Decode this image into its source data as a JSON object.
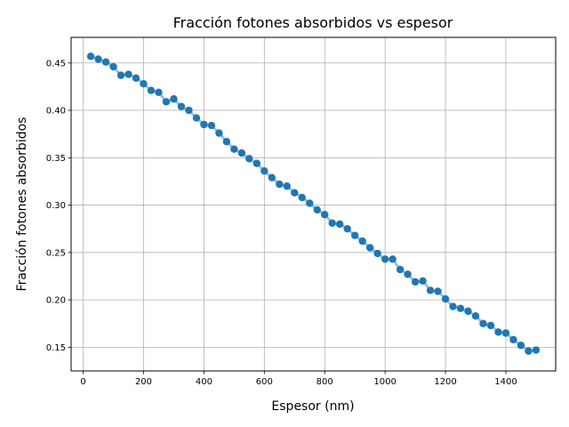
{
  "chart_data": {
    "type": "scatter",
    "title": "Fracción fotones absorbidos vs espesor",
    "xlabel": "Espesor (nm)",
    "ylabel": "Fracción fotones absorbidos",
    "xlim": [
      -40,
      1565
    ],
    "ylim": [
      0.125,
      0.477
    ],
    "xticks": [
      0,
      200,
      400,
      600,
      800,
      1000,
      1200,
      1400
    ],
    "yticks": [
      0.15,
      0.2,
      0.25,
      0.3,
      0.35,
      0.4,
      0.45
    ],
    "xtick_labels": [
      "0",
      "200",
      "400",
      "600",
      "800",
      "1000",
      "1200",
      "1400"
    ],
    "ytick_labels": [
      "0.15",
      "0.20",
      "0.25",
      "0.30",
      "0.35",
      "0.40",
      "0.45"
    ],
    "grid": true,
    "colors": {
      "marker": "#1f77b4",
      "line": "#1f77b4",
      "grid": "#b0b0b0"
    },
    "series": [
      {
        "x": [
          25,
          50,
          75,
          100,
          125,
          150,
          175,
          200,
          225,
          250,
          275,
          300,
          325,
          350,
          375,
          400,
          425,
          450,
          475,
          500,
          525,
          550,
          575,
          600,
          625,
          650,
          675,
          700,
          725,
          750,
          775,
          800,
          825,
          850,
          875,
          900,
          925,
          950,
          975,
          1000,
          1025,
          1050,
          1075,
          1100,
          1125,
          1150,
          1175,
          1200,
          1225,
          1250,
          1275,
          1300,
          1325,
          1350,
          1375,
          1400,
          1425,
          1450,
          1475,
          1500
        ],
        "y": [
          0.457,
          0.454,
          0.451,
          0.446,
          0.437,
          0.438,
          0.434,
          0.428,
          0.421,
          0.419,
          0.409,
          0.412,
          0.404,
          0.4,
          0.392,
          0.385,
          0.384,
          0.376,
          0.367,
          0.359,
          0.355,
          0.349,
          0.344,
          0.336,
          0.329,
          0.322,
          0.32,
          0.313,
          0.308,
          0.302,
          0.295,
          0.29,
          0.281,
          0.28,
          0.275,
          0.268,
          0.262,
          0.255,
          0.249,
          0.243,
          0.243,
          0.232,
          0.227,
          0.219,
          0.22,
          0.21,
          0.209,
          0.201,
          0.193,
          0.191,
          0.188,
          0.183,
          0.175,
          0.173,
          0.166,
          0.165,
          0.158,
          0.152,
          0.146,
          0.147
        ]
      }
    ]
  }
}
